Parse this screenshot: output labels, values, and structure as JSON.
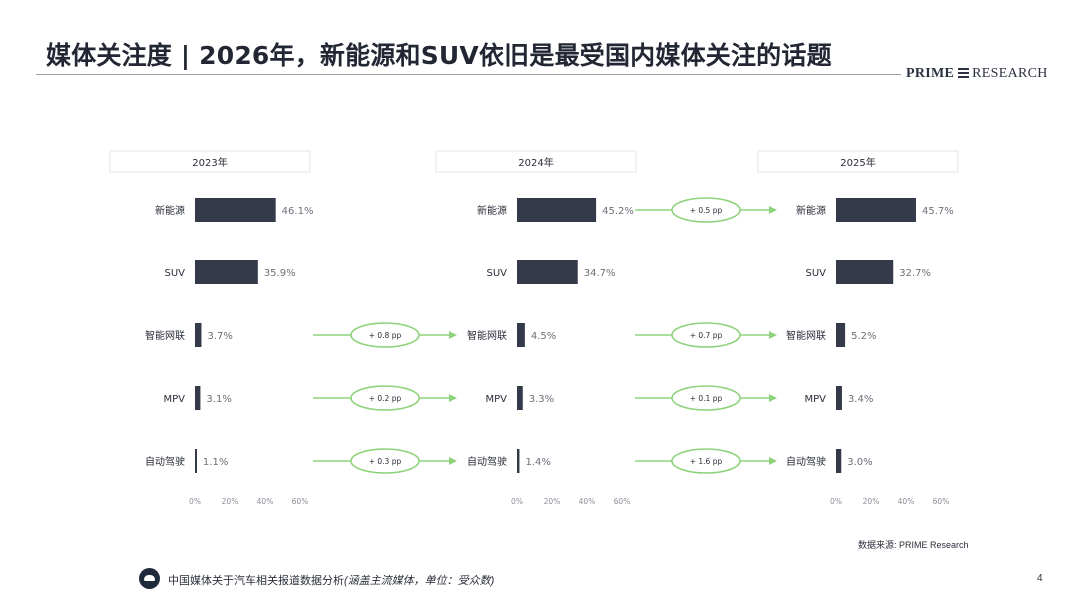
{
  "title": "媒体关注度 | 2026年，新能源和SUV依旧是最受国内媒体关注的话题",
  "logo": {
    "part1": "PRIME",
    "part2": "RESEARCH"
  },
  "colors": {
    "bar": "#343a4a",
    "arrow": "#8ed37c",
    "rule": "#9aa0a8"
  },
  "chart_data": {
    "type": "bar",
    "orientation": "horizontal",
    "categories": [
      "新能源",
      "SUV",
      "智能网联",
      "MPV",
      "自动驾驶"
    ],
    "x_ticks": [
      "0%",
      "20%",
      "40%",
      "60%"
    ],
    "xlim": [
      0,
      60
    ],
    "value_labels_show_percent": true,
    "panels": [
      {
        "name": "2023年",
        "values": [
          46.1,
          35.9,
          3.7,
          3.1,
          1.1
        ]
      },
      {
        "name": "2024年",
        "values": [
          45.2,
          34.7,
          4.5,
          3.3,
          1.4
        ]
      },
      {
        "name": "2025年",
        "values": [
          45.7,
          32.7,
          5.2,
          3.4,
          3.0
        ]
      }
    ],
    "changes": [
      {
        "to_panel": 1,
        "category": "智能网联",
        "label": "+ 0.8 pp"
      },
      {
        "to_panel": 1,
        "category": "MPV",
        "label": "+ 0.2 pp"
      },
      {
        "to_panel": 1,
        "category": "自动驾驶",
        "label": "+ 0.3 pp"
      },
      {
        "to_panel": 2,
        "category": "新能源",
        "label": "+ 0.5 pp"
      },
      {
        "to_panel": 2,
        "category": "智能网联",
        "label": "+ 0.7 pp"
      },
      {
        "to_panel": 2,
        "category": "MPV",
        "label": "+ 0.1 pp"
      },
      {
        "to_panel": 2,
        "category": "自动驾驶",
        "label": "+ 1.6 pp"
      }
    ]
  },
  "source": "数据来源: PRIME Research",
  "footer": {
    "text": "中国媒体关于汽车相关报道数据分析",
    "note": "(涵盖主流媒体，单位：受众数)"
  },
  "page_number": "4"
}
